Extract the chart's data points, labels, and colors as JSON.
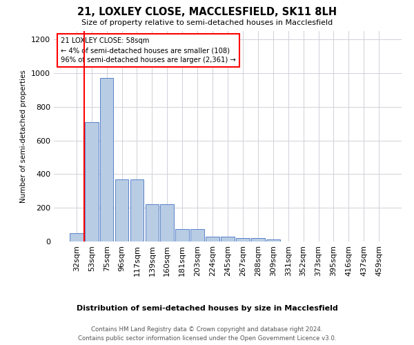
{
  "title": "21, LOXLEY CLOSE, MACCLESFIELD, SK11 8LH",
  "subtitle": "Size of property relative to semi-detached houses in Macclesfield",
  "xlabel_bottom": "Distribution of semi-detached houses by size in Macclesfield",
  "ylabel": "Number of semi-detached properties",
  "footnote1": "Contains HM Land Registry data © Crown copyright and database right 2024.",
  "footnote2": "Contains public sector information licensed under the Open Government Licence v3.0.",
  "annotation_title": "21 LOXLEY CLOSE: 58sqm",
  "annotation_line1": "← 4% of semi-detached houses are smaller (108)",
  "annotation_line2": "96% of semi-detached houses are larger (2,361) →",
  "bar_labels": [
    "32sqm",
    "53sqm",
    "75sqm",
    "96sqm",
    "117sqm",
    "139sqm",
    "160sqm",
    "181sqm",
    "203sqm",
    "224sqm",
    "245sqm",
    "267sqm",
    "288sqm",
    "309sqm",
    "331sqm",
    "352sqm",
    "373sqm",
    "395sqm",
    "416sqm",
    "437sqm",
    "459sqm"
  ],
  "bar_values": [
    48,
    710,
    970,
    370,
    370,
    220,
    220,
    75,
    75,
    30,
    30,
    20,
    20,
    13,
    0,
    0,
    0,
    0,
    0,
    0,
    0
  ],
  "bar_color": "#b8cce4",
  "bar_edge_color": "#4472c4",
  "ylim": [
    0,
    1250
  ],
  "yticks": [
    0,
    200,
    400,
    600,
    800,
    1000,
    1200
  ],
  "background_color": "#ffffff",
  "grid_color": "#d0d0d8"
}
